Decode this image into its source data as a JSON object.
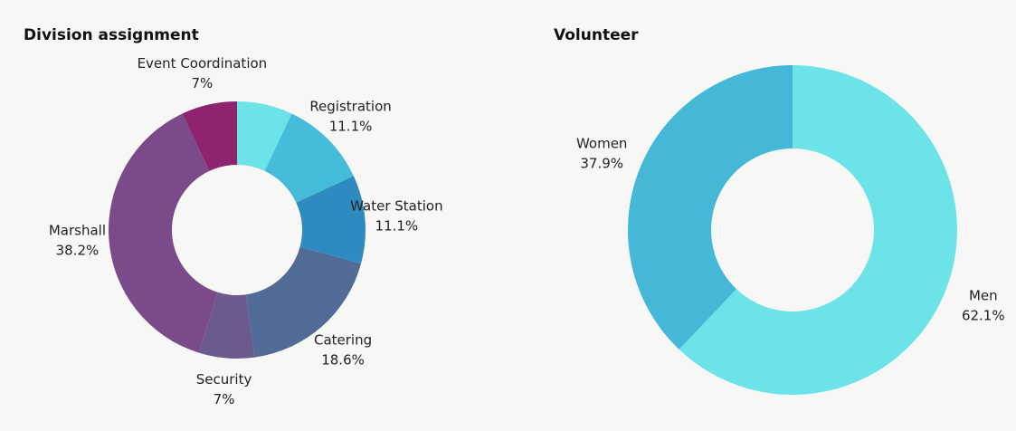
{
  "chart_data": [
    {
      "type": "pie",
      "title": "Division assignment",
      "donut": true,
      "categories": [
        null,
        "Registration",
        "Water Station",
        "Catering",
        "Security",
        "Marshall",
        "Event Coordination"
      ],
      "values": [
        7,
        11.1,
        11.1,
        18.6,
        7,
        38.2,
        7
      ],
      "value_labels": [
        null,
        "11.1%",
        "11.1%",
        "18.6%",
        "7%",
        "38.2%",
        "7%"
      ],
      "colors": [
        "#6ce3e8",
        "#45bcd9",
        "#2e8bc0",
        "#4f6b96",
        "#6a5a8e",
        "#7b4a8a",
        "#8e2470"
      ]
    },
    {
      "type": "pie",
      "title": "Volunteer",
      "donut": true,
      "categories": [
        "Men",
        "Women"
      ],
      "values": [
        62.1,
        37.9
      ],
      "value_labels": [
        "62.1%",
        "37.9%"
      ],
      "colors": [
        "#6ce3e8",
        "#45b8d8"
      ]
    }
  ]
}
